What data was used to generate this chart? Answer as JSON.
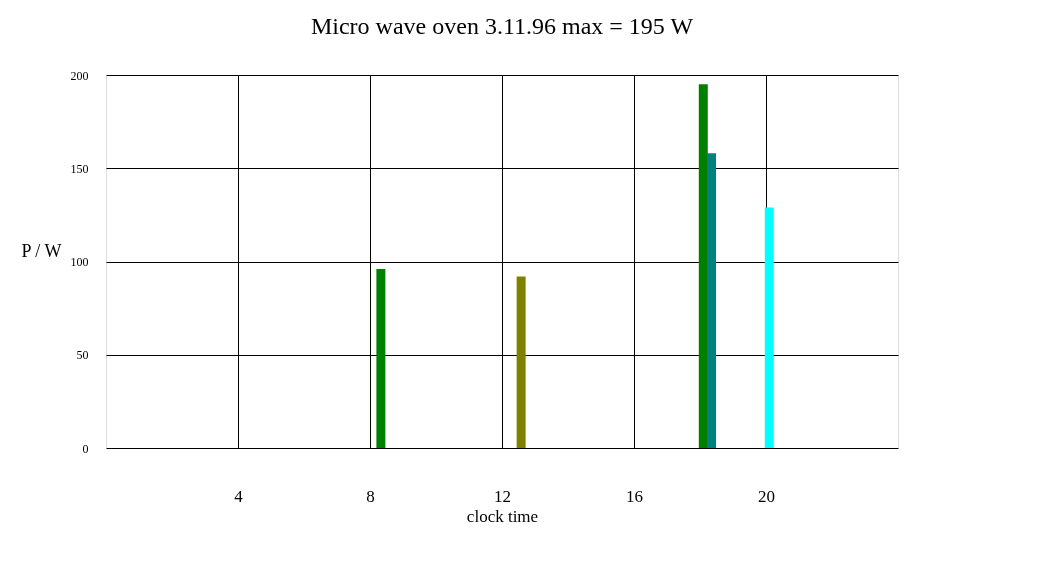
{
  "chart_data": {
    "type": "bar",
    "title": "Micro wave oven 3.11.96 max = 195 W",
    "xlabel": "clock time",
    "ylabel": "P / W",
    "x": [
      8.33,
      12.58,
      18.1,
      18.35,
      20.1
    ],
    "values": [
      96,
      92,
      195,
      158,
      129
    ],
    "colors": [
      "#008000",
      "#808000",
      "#008000",
      "#008080",
      "#00ffff"
    ],
    "xlim": [
      0,
      24
    ],
    "xticks": [
      4,
      8,
      12,
      16,
      20
    ],
    "ylim": [
      0,
      200
    ],
    "yticks": [
      0,
      50,
      100,
      150,
      200
    ],
    "grid": true
  }
}
